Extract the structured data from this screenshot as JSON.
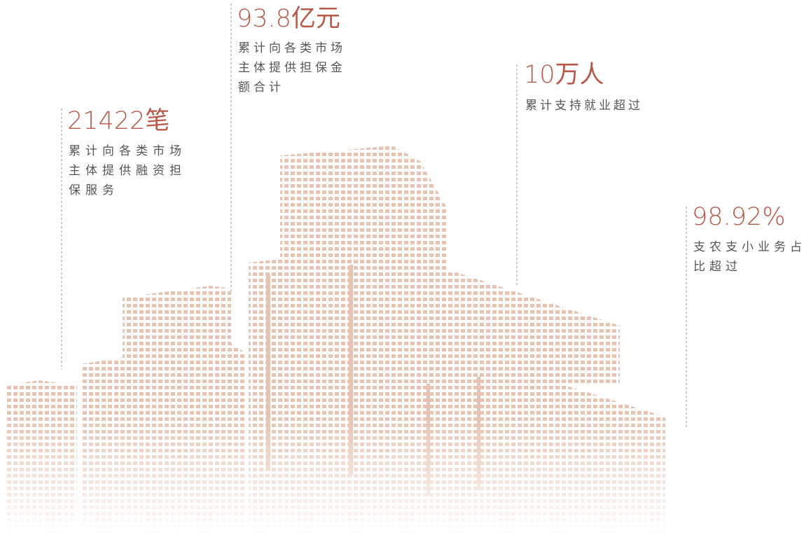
{
  "stats": [
    {
      "value": "21422笔",
      "label": "累计向各类市场主体提供融资担保服务"
    },
    {
      "value": "93.8亿元",
      "label": "累计向各类市场主体提供担保金额合计"
    },
    {
      "value": "10万人",
      "label": "累计支持就业超过"
    },
    {
      "value": "98.92%",
      "label": "支农支小业务占比超过"
    }
  ]
}
